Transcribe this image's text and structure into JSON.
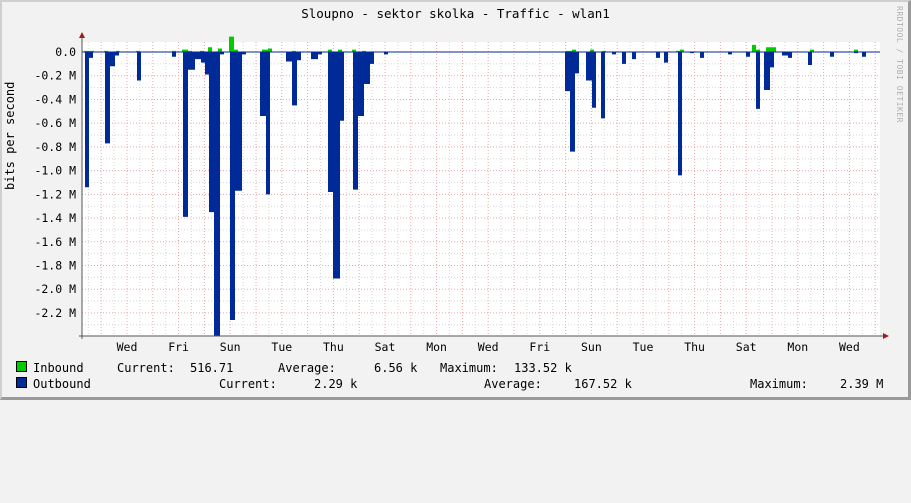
{
  "title": "Sloupno - sektor skolka - Traffic - wlan1",
  "watermark": "RRDTOOL / TOBI OETIKER",
  "chart_data": {
    "type": "area",
    "title": "Sloupno - sektor skolka - Traffic - wlan1",
    "xlabel": "",
    "ylabel": "bits per second",
    "ylim": [
      -2.39,
      0.14
    ],
    "y_unit": "M",
    "y_ticks": [
      "0.0",
      "-0.2 M",
      "-0.4 M",
      "-0.6 M",
      "-0.8 M",
      "-1.0 M",
      "-1.2 M",
      "-1.4 M",
      "-1.6 M",
      "-1.8 M",
      "-2.0 M",
      "-2.2 M"
    ],
    "y_tick_values": [
      0.0,
      -0.2,
      -0.4,
      -0.6,
      -0.8,
      -1.0,
      -1.2,
      -1.4,
      -1.6,
      -1.8,
      -2.0,
      -2.2
    ],
    "x_tick_labels": [
      "Wed",
      "Fri",
      "Sun",
      "Tue",
      "Thu",
      "Sat",
      "Mon",
      "Wed",
      "Fri",
      "Sun",
      "Tue",
      "Thu",
      "Sat",
      "Mon",
      "Wed"
    ],
    "grid": true,
    "legend_position": "bottom",
    "series": [
      {
        "name": "Inbound",
        "color": "#00cc00",
        "note": "plotted upward (positive), values in M bits/s",
        "points": [
          [
            84,
            0.01
          ],
          [
            90,
            0.01
          ],
          [
            104,
            0.01
          ],
          [
            116,
            0.01
          ],
          [
            136,
            0.01
          ],
          [
            172,
            0.01
          ],
          [
            182,
            0.02
          ],
          [
            188,
            0.01
          ],
          [
            200,
            0.01
          ],
          [
            208,
            0.04
          ],
          [
            218,
            0.03
          ],
          [
            229,
            0.13
          ],
          [
            234,
            0.02
          ],
          [
            262,
            0.02
          ],
          [
            268,
            0.03
          ],
          [
            292,
            0.01
          ],
          [
            328,
            0.02
          ],
          [
            338,
            0.02
          ],
          [
            352,
            0.02
          ],
          [
            362,
            0.01
          ],
          [
            566,
            0.01
          ],
          [
            572,
            0.02
          ],
          [
            590,
            0.02
          ],
          [
            602,
            0.01
          ],
          [
            676,
            0.01
          ],
          [
            680,
            0.02
          ],
          [
            752,
            0.06
          ],
          [
            756,
            0.02
          ],
          [
            766,
            0.04
          ],
          [
            772,
            0.04
          ],
          [
            810,
            0.02
          ],
          [
            854,
            0.02
          ]
        ]
      },
      {
        "name": "Outbound",
        "color": "#002a97",
        "note": "plotted downward (negative), values in M bits/s",
        "points": [
          [
            85,
            -1.14
          ],
          [
            89,
            -0.05
          ],
          [
            105,
            -0.77
          ],
          [
            110,
            -0.12
          ],
          [
            115,
            -0.03
          ],
          [
            137,
            -0.24
          ],
          [
            172,
            -0.04
          ],
          [
            183,
            -1.39
          ],
          [
            188,
            -0.15
          ],
          [
            195,
            -0.06
          ],
          [
            201,
            -0.09
          ],
          [
            205,
            -0.19
          ],
          [
            209,
            -1.35
          ],
          [
            214,
            -2.39
          ],
          [
            220,
            -0.02
          ],
          [
            230,
            -2.26
          ],
          [
            235,
            -1.17
          ],
          [
            242,
            -0.02
          ],
          [
            260,
            -0.54
          ],
          [
            266,
            -1.2
          ],
          [
            286,
            -0.08
          ],
          [
            292,
            -0.45
          ],
          [
            297,
            -0.07
          ],
          [
            311,
            -0.06
          ],
          [
            318,
            -0.02
          ],
          [
            328,
            -1.18
          ],
          [
            333,
            -1.91
          ],
          [
            340,
            -0.58
          ],
          [
            353,
            -1.16
          ],
          [
            358,
            -0.54
          ],
          [
            364,
            -0.27
          ],
          [
            370,
            -0.1
          ],
          [
            384,
            -0.02
          ],
          [
            565,
            -0.33
          ],
          [
            570,
            -0.84
          ],
          [
            575,
            -0.18
          ],
          [
            586,
            -0.24
          ],
          [
            592,
            -0.47
          ],
          [
            601,
            -0.56
          ],
          [
            612,
            -0.02
          ],
          [
            622,
            -0.1
          ],
          [
            632,
            -0.06
          ],
          [
            656,
            -0.05
          ],
          [
            664,
            -0.09
          ],
          [
            678,
            -1.04
          ],
          [
            690,
            -0.01
          ],
          [
            700,
            -0.05
          ],
          [
            728,
            -0.02
          ],
          [
            746,
            -0.04
          ],
          [
            756,
            -0.48
          ],
          [
            764,
            -0.32
          ],
          [
            770,
            -0.13
          ],
          [
            782,
            -0.03
          ],
          [
            788,
            -0.05
          ],
          [
            808,
            -0.11
          ],
          [
            830,
            -0.04
          ],
          [
            854,
            -0.01
          ],
          [
            862,
            -0.04
          ]
        ]
      }
    ]
  },
  "legend": {
    "inbound": {
      "label": "Inbound",
      "color": "#00cc00",
      "current_label": "Current:",
      "current": "516.71",
      "average_label": "Average:",
      "average": "6.56 k",
      "maximum_label": "Maximum:",
      "maximum": "133.52 k"
    },
    "outbound": {
      "label": "Outbound",
      "color": "#002a97",
      "current_label": "Current:",
      "current": "2.29 k",
      "average_label": "Average:",
      "average": "167.52 k",
      "maximum_label": "Maximum:",
      "maximum": "2.39 M"
    }
  }
}
